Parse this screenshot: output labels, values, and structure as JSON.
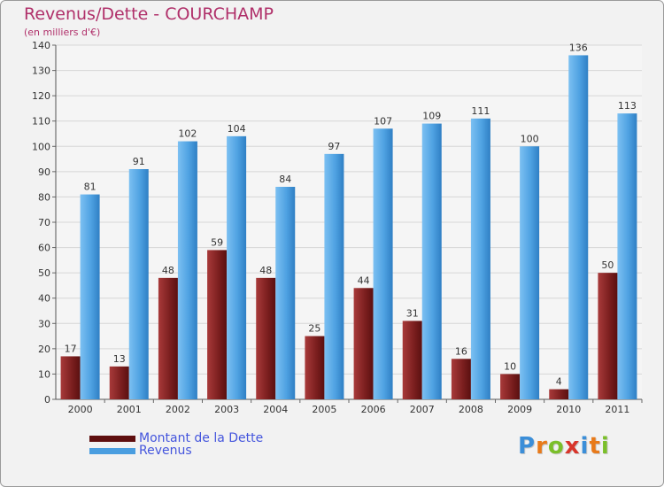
{
  "title": "Revenus/Dette - COURCHAMP",
  "subtitle": "(en milliers d'€)",
  "logo": "Proxiti",
  "chart_data": {
    "type": "bar",
    "title": "Revenus/Dette - COURCHAMP",
    "subtitle": "(en milliers d'€)",
    "xlabel": "",
    "ylabel": "",
    "ylim": [
      0,
      140
    ],
    "yticks": [
      0,
      10,
      20,
      30,
      40,
      50,
      60,
      70,
      80,
      90,
      100,
      110,
      120,
      130,
      140
    ],
    "grid": true,
    "legend_position": "bottom-left",
    "categories": [
      "2000",
      "2001",
      "2002",
      "2003",
      "2004",
      "2005",
      "2006",
      "2007",
      "2008",
      "2009",
      "2010",
      "2011"
    ],
    "series": [
      {
        "name": "Montant de la Dette",
        "color": "#7a1c1c",
        "values": [
          17,
          13,
          48,
          59,
          48,
          25,
          44,
          31,
          16,
          10,
          4,
          50
        ]
      },
      {
        "name": "Revenus",
        "color": "#4a9ee0",
        "values": [
          81,
          91,
          102,
          104,
          84,
          97,
          107,
          109,
          111,
          100,
          136,
          113
        ]
      }
    ]
  }
}
